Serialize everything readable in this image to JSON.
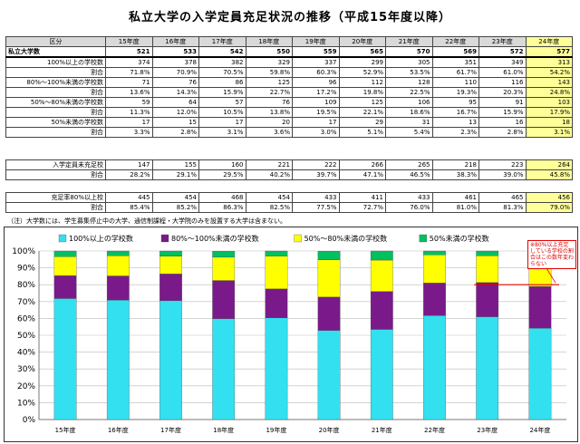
{
  "title": "私立大学の入学定員充足状況の推移（平成15年度以降）",
  "table": {
    "label_header": "区分",
    "years": [
      "15年度",
      "16年度",
      "17年度",
      "18年度",
      "19年度",
      "20年度",
      "21年度",
      "22年度",
      "23年度",
      "24年度"
    ],
    "total_label": "私立大学数",
    "totals": [
      "521",
      "533",
      "542",
      "550",
      "559",
      "565",
      "570",
      "569",
      "572",
      "577"
    ],
    "groups": [
      {
        "label": "100%以上の学校数",
        "counts": [
          "374",
          "378",
          "382",
          "329",
          "337",
          "299",
          "305",
          "351",
          "349",
          "313"
        ],
        "ratio_label": "割合",
        "ratios": [
          "71.8%",
          "70.9%",
          "70.5%",
          "59.8%",
          "60.3%",
          "52.9%",
          "53.5%",
          "61.7%",
          "61.0%",
          "54.2%"
        ]
      },
      {
        "label": "80%～100%未満の学校数",
        "counts": [
          "71",
          "76",
          "86",
          "125",
          "96",
          "112",
          "128",
          "110",
          "116",
          "143"
        ],
        "ratio_label": "割合",
        "ratios": [
          "13.6%",
          "14.3%",
          "15.9%",
          "22.7%",
          "17.2%",
          "19.8%",
          "22.5%",
          "19.3%",
          "20.3%",
          "24.8%"
        ]
      },
      {
        "label": "50%～80%未満の学校数",
        "counts": [
          "59",
          "64",
          "57",
          "76",
          "109",
          "125",
          "106",
          "95",
          "91",
          "103"
        ],
        "ratio_label": "割合",
        "ratios": [
          "11.3%",
          "12.0%",
          "10.5%",
          "13.8%",
          "19.5%",
          "22.1%",
          "18.6%",
          "16.7%",
          "15.9%",
          "17.9%"
        ]
      },
      {
        "label": "50%未満の学校数",
        "counts": [
          "17",
          "15",
          "17",
          "20",
          "17",
          "29",
          "31",
          "13",
          "16",
          "18"
        ],
        "ratio_label": "割合",
        "ratios": [
          "3.3%",
          "2.8%",
          "3.1%",
          "3.6%",
          "3.0%",
          "5.1%",
          "5.4%",
          "2.3%",
          "2.8%",
          "3.1%"
        ]
      }
    ],
    "under_label": "入学定員未充足校",
    "under_counts": [
      "147",
      "155",
      "160",
      "221",
      "222",
      "266",
      "265",
      "218",
      "223",
      "264"
    ],
    "under_ratio_label": "割合",
    "under_ratios": [
      "28.2%",
      "29.1%",
      "29.5%",
      "40.2%",
      "39.7%",
      "47.1%",
      "46.5%",
      "38.3%",
      "39.0%",
      "45.8%"
    ],
    "over80_label": "充足率80%以上校",
    "over80_counts": [
      "445",
      "454",
      "468",
      "454",
      "433",
      "411",
      "433",
      "461",
      "465",
      "456"
    ],
    "over80_ratio_label": "割合",
    "over80_ratios": [
      "85.4%",
      "85.2%",
      "86.3%",
      "82.5%",
      "77.5%",
      "72.7%",
      "76.0%",
      "81.0%",
      "81.3%",
      "79.0%"
    ]
  },
  "note": "（注）大学数には、学生募集停止中の大学、通信制課程・大学院のみを設置する大学は含まない。",
  "callout": "※80%以上充足している学校の割合はこの数年変わらない",
  "chart_data": {
    "type": "bar",
    "stacked": true,
    "categories": [
      "15年度",
      "16年度",
      "17年度",
      "18年度",
      "19年度",
      "20年度",
      "21年度",
      "22年度",
      "23年度",
      "24年度"
    ],
    "series": [
      {
        "name": "100%以上の学校数",
        "color": "#33e0f0",
        "values": [
          71.8,
          70.9,
          70.5,
          59.8,
          60.3,
          52.9,
          53.5,
          61.7,
          61.0,
          54.2
        ]
      },
      {
        "name": "80%～100%未満の学校数",
        "color": "#7a1a8a",
        "values": [
          13.6,
          14.3,
          15.9,
          22.7,
          17.2,
          19.8,
          22.5,
          19.3,
          20.3,
          24.8
        ]
      },
      {
        "name": "50%～80%未満の学校数",
        "color": "#ffff00",
        "values": [
          11.3,
          12.0,
          10.5,
          13.8,
          19.5,
          22.1,
          18.6,
          16.7,
          15.9,
          17.9
        ]
      },
      {
        "name": "50%未満の学校数",
        "color": "#00c060",
        "values": [
          3.3,
          2.8,
          3.1,
          3.6,
          3.0,
          5.1,
          5.4,
          2.3,
          2.8,
          3.1
        ]
      }
    ],
    "ylim": [
      0,
      100
    ],
    "yticks": [
      "0%",
      "10%",
      "20%",
      "30%",
      "40%",
      "50%",
      "60%",
      "70%",
      "80%",
      "90%",
      "100%"
    ],
    "grid": true,
    "legend": "top",
    "reference_line": 80,
    "reference_color": "#e00000"
  }
}
